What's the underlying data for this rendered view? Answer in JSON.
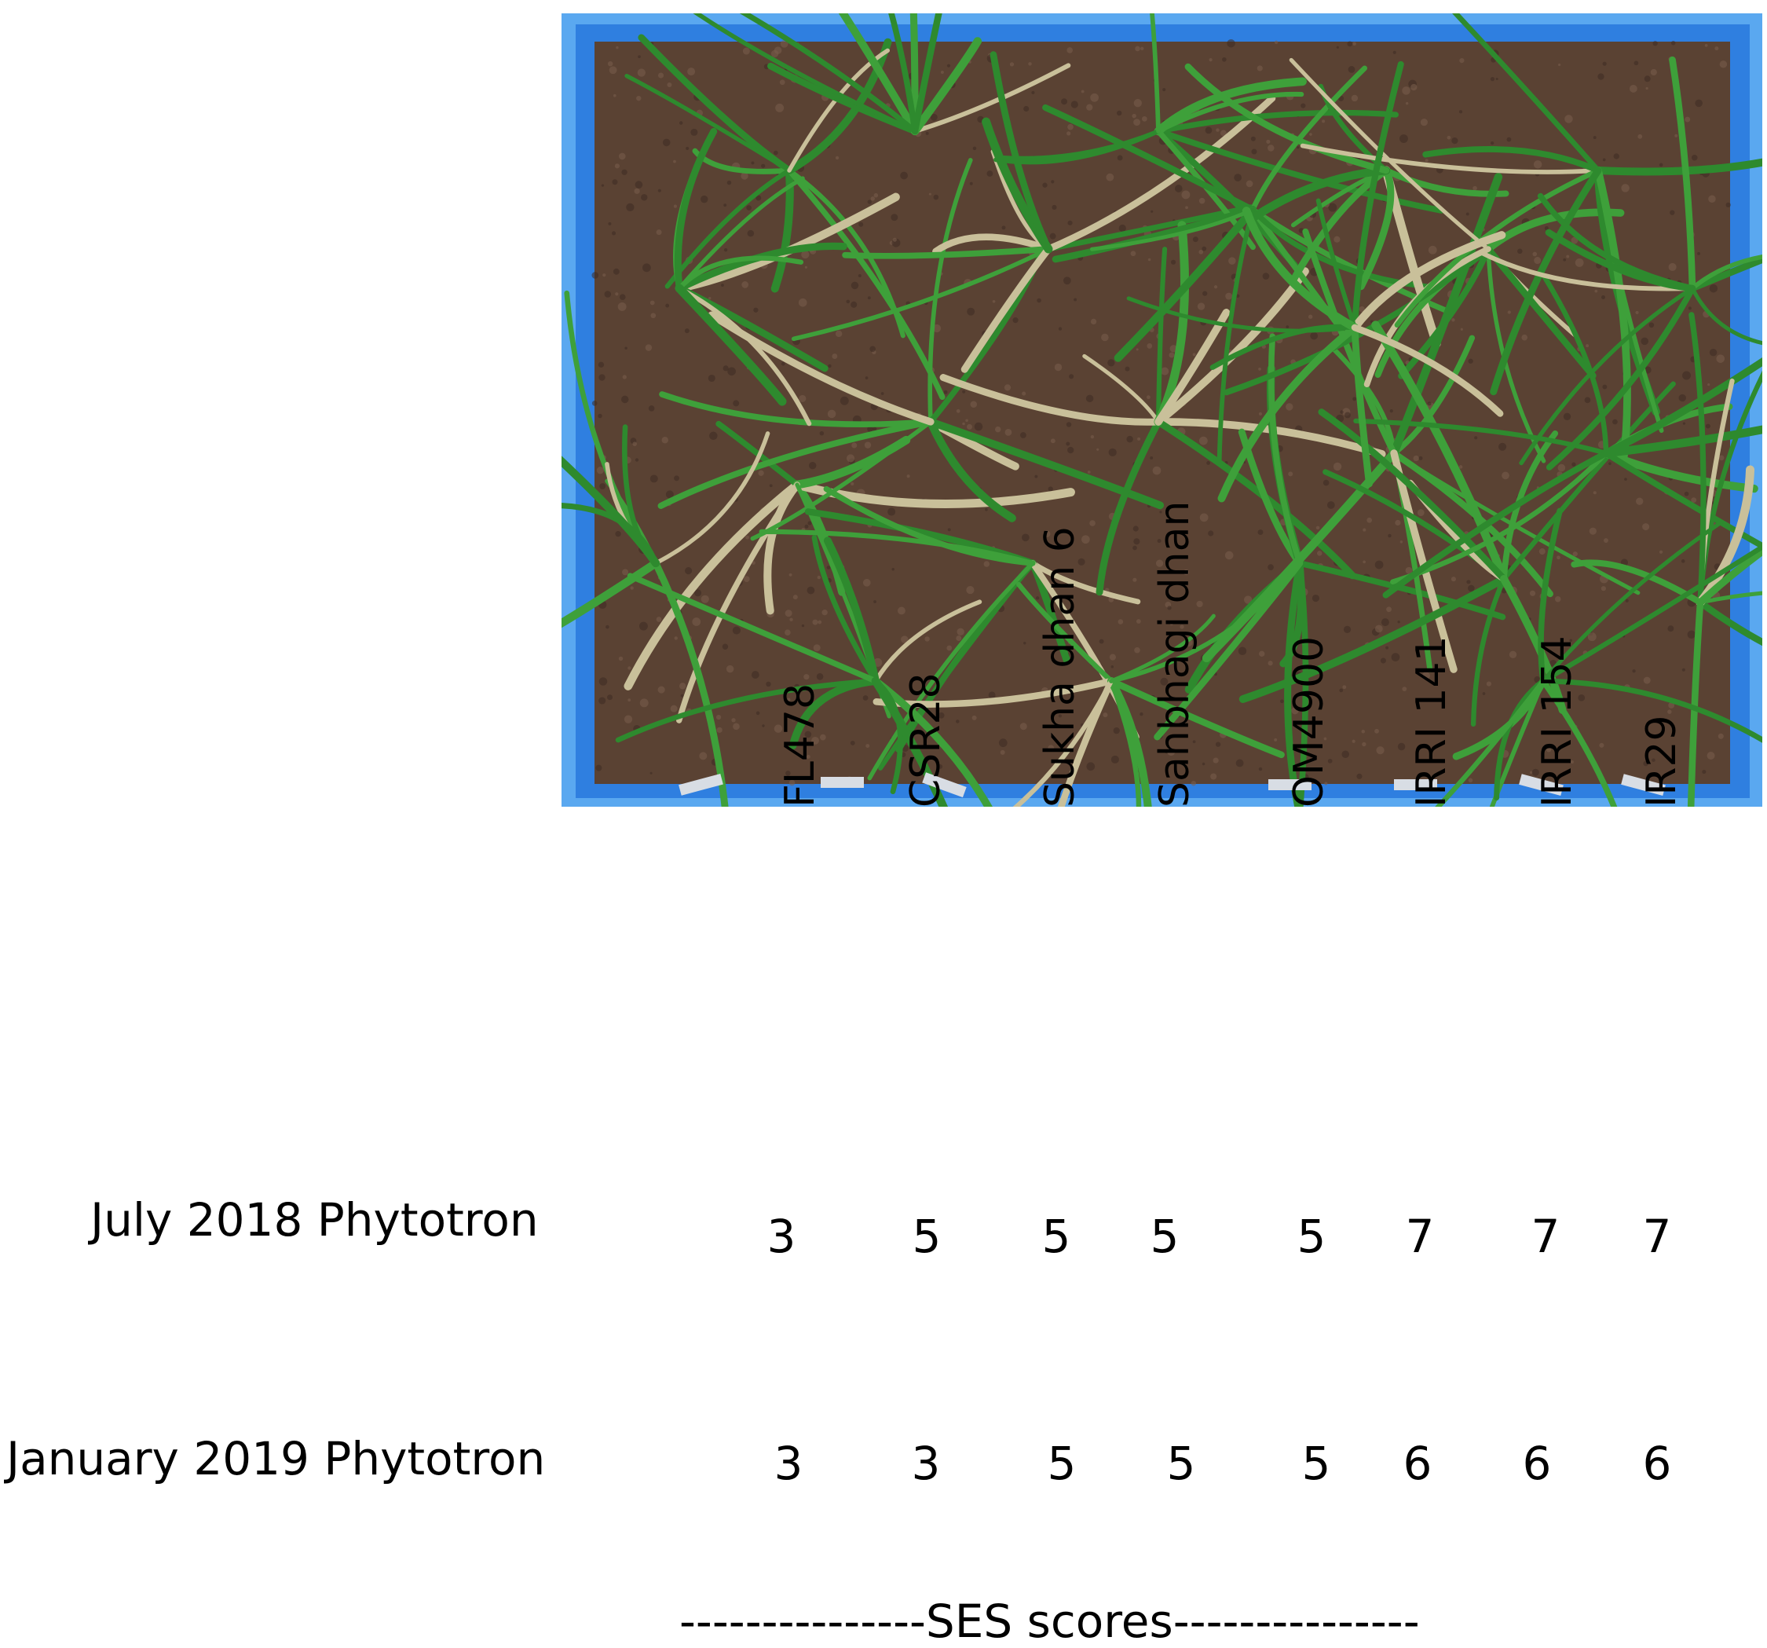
{
  "photo": {
    "description_icon": "rice-seedling-tray-photo",
    "colors": {
      "tray": "#2f7fe0",
      "tray_rim": "#5aa8f0",
      "soil": "#5a4233",
      "leaf": "#2e8a2e"
    }
  },
  "varieties": [
    "FL478",
    "CSR28",
    "Sukha dhan 6",
    "Sahbhagi dhan",
    "OM4900",
    "IRRI 141",
    "IRRI 154",
    "IR29"
  ],
  "rows": [
    {
      "label": "July 2018 Phytotron",
      "scores": [
        "3",
        "5",
        "5",
        "5",
        "5",
        "7",
        "7",
        "7"
      ]
    },
    {
      "label": "January 2019 Phytotron",
      "scores": [
        "3",
        "3",
        "5",
        "5",
        "5",
        "6",
        "6",
        "6"
      ]
    }
  ],
  "footer": "---------------SES scores---------------"
}
